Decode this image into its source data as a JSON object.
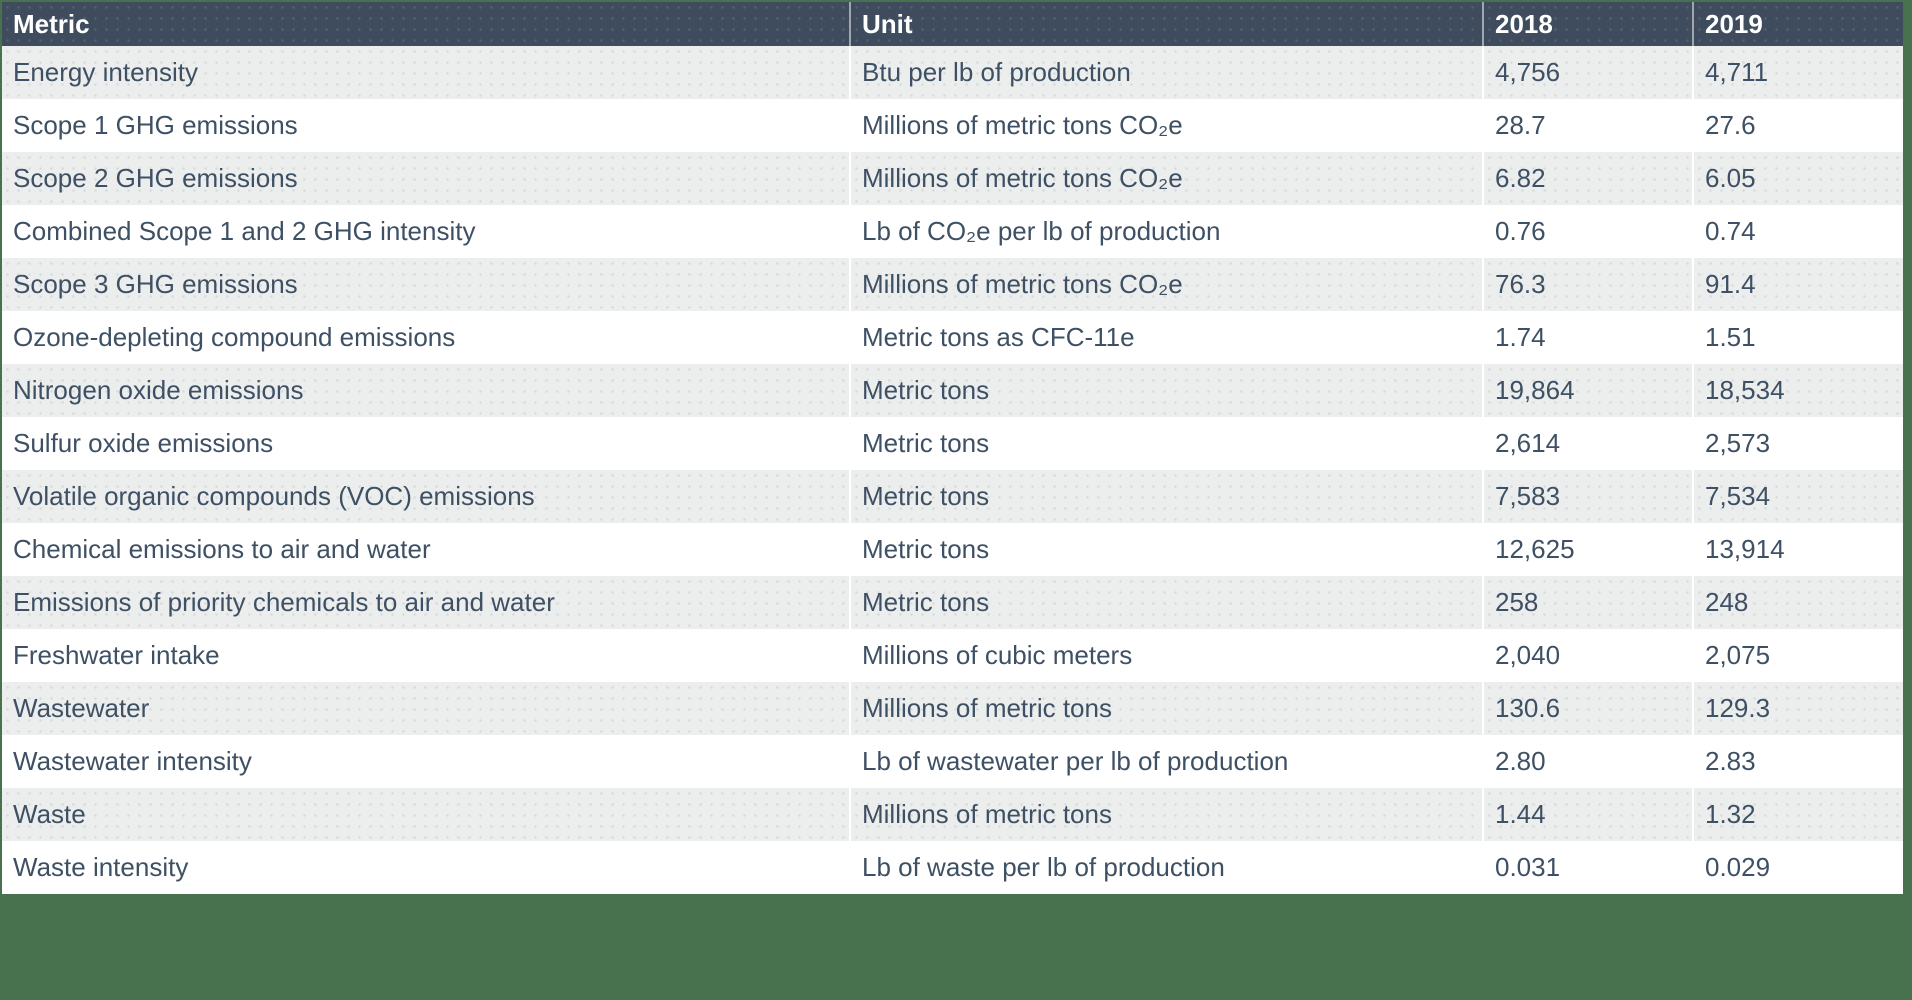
{
  "page": {
    "background_color": "#48714E"
  },
  "table": {
    "header_bg_color": "#3E4C5E",
    "header_text_color": "#FFFFFF",
    "row_alt_color": "#ECEDED",
    "body_text_color": "#3E5064",
    "columns": [
      {
        "key": "metric",
        "label": "Metric"
      },
      {
        "key": "unit",
        "label": "Unit"
      },
      {
        "key": "y2018",
        "label": "2018"
      },
      {
        "key": "y2019",
        "label": "2019"
      }
    ],
    "rows": [
      {
        "metric": "Energy intensity",
        "unit": "Btu per lb of production",
        "y2018": "4,756",
        "y2019": "4,711"
      },
      {
        "metric": "Scope 1 GHG emissions",
        "unit": "Millions of metric tons CO₂e",
        "y2018": "28.7",
        "y2019": "27.6"
      },
      {
        "metric": "Scope 2 GHG emissions",
        "unit": "Millions of metric tons CO₂e",
        "y2018": "6.82",
        "y2019": "6.05"
      },
      {
        "metric": "Combined Scope 1 and 2 GHG intensity",
        "unit": "Lb of CO₂e per lb of production",
        "y2018": "0.76",
        "y2019": "0.74"
      },
      {
        "metric": "Scope 3 GHG emissions",
        "unit": "Millions of metric tons CO₂e",
        "y2018": "76.3",
        "y2019": "91.4"
      },
      {
        "metric": "Ozone-depleting compound emissions",
        "unit": "Metric tons as CFC-11e",
        "y2018": "1.74",
        "y2019": "1.51"
      },
      {
        "metric": "Nitrogen oxide emissions",
        "unit": "Metric tons",
        "y2018": "19,864",
        "y2019": "18,534"
      },
      {
        "metric": "Sulfur oxide emissions",
        "unit": "Metric tons",
        "y2018": "2,614",
        "y2019": "2,573"
      },
      {
        "metric": "Volatile organic compounds (VOC) emissions",
        "unit": "Metric tons",
        "y2018": "7,583",
        "y2019": "7,534"
      },
      {
        "metric": "Chemical emissions to air and water",
        "unit": "Metric tons",
        "y2018": "12,625",
        "y2019": "13,914"
      },
      {
        "metric": "Emissions of priority chemicals to air and water",
        "unit": "Metric tons",
        "y2018": "258",
        "y2019": "248"
      },
      {
        "metric": "Freshwater intake",
        "unit": "Millions of cubic meters",
        "y2018": "2,040",
        "y2019": "2,075"
      },
      {
        "metric": "Wastewater",
        "unit": "Millions of metric tons",
        "y2018": "130.6",
        "y2019": "129.3"
      },
      {
        "metric": "Wastewater intensity",
        "unit": "Lb of wastewater per lb of production",
        "y2018": "2.80",
        "y2019": "2.83"
      },
      {
        "metric": "Waste",
        "unit": "Millions of metric tons",
        "y2018": "1.44",
        "y2019": "1.32"
      },
      {
        "metric": "Waste intensity",
        "unit": "Lb of waste per lb of production",
        "y2018": "0.031",
        "y2019": "0.029"
      }
    ]
  }
}
